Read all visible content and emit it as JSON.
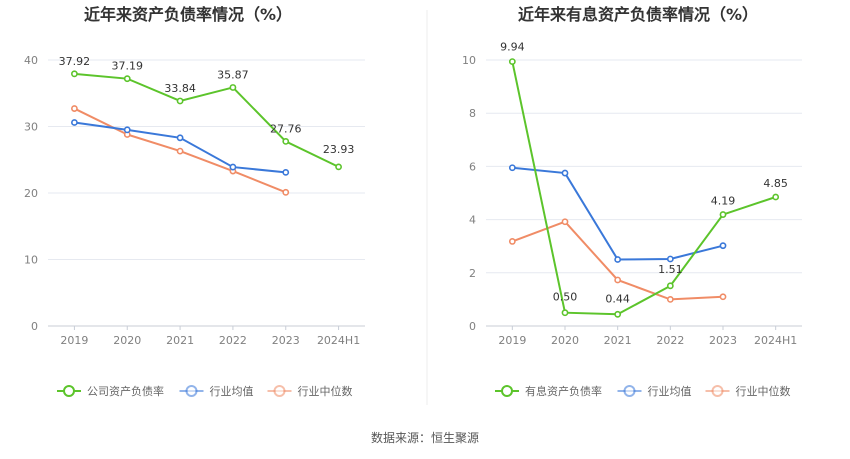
{
  "source": "数据来源：恒生聚源",
  "colors": {
    "company": "#5cc42b",
    "industry_avg": "#3a78d9",
    "industry_median": "#f08c66",
    "grid": "#e6e9f0",
    "axis": "#c8cdd6"
  },
  "chart_data": [
    {
      "type": "line",
      "title": "近年来资产负债率情况（%）",
      "categories": [
        "2019",
        "2020",
        "2021",
        "2022",
        "2023",
        "2024H1"
      ],
      "ylim": [
        0,
        40
      ],
      "yticks": [
        "0",
        "10",
        "20",
        "30",
        "40"
      ],
      "legend_position": "bottom",
      "grid": true,
      "series": [
        {
          "name": "公司资产负债率",
          "values": [
            37.92,
            37.19,
            33.84,
            35.87,
            27.76,
            23.93
          ],
          "labels": [
            "37.92",
            "37.19",
            "33.84",
            "35.87",
            "27.76",
            "23.93"
          ]
        },
        {
          "name": "行业均值",
          "values": [
            30.6,
            29.5,
            28.3,
            23.9,
            23.1,
            null
          ]
        },
        {
          "name": "行业中位数",
          "values": [
            32.7,
            28.8,
            26.3,
            23.3,
            20.1,
            null
          ]
        }
      ]
    },
    {
      "type": "line",
      "title": "近年来有息资产负债率情况（%）",
      "categories": [
        "2019",
        "2020",
        "2021",
        "2022",
        "2023",
        "2024H1"
      ],
      "ylim": [
        0,
        10
      ],
      "yticks": [
        "0",
        "2",
        "4",
        "6",
        "8",
        "10"
      ],
      "legend_position": "bottom",
      "grid": true,
      "series": [
        {
          "name": "有息资产负债率",
          "values": [
            9.94,
            0.5,
            0.44,
            1.51,
            4.19,
            4.85
          ],
          "labels": [
            "9.94",
            "0.50",
            "0.44",
            "1.51",
            "4.19",
            "4.85"
          ]
        },
        {
          "name": "行业均值",
          "values": [
            5.95,
            5.75,
            2.5,
            2.52,
            3.02,
            null
          ]
        },
        {
          "name": "行业中位数",
          "values": [
            3.18,
            3.92,
            1.73,
            1.0,
            1.1,
            null
          ]
        }
      ]
    }
  ]
}
